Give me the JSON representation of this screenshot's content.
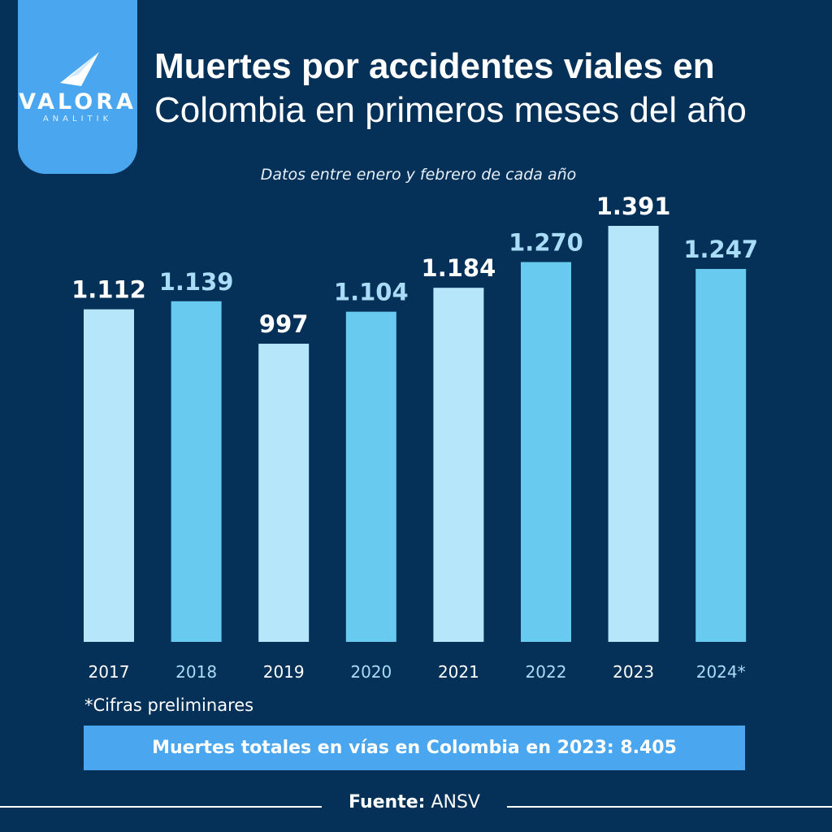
{
  "brand": {
    "name": "VALORA",
    "sub": "ANALITIK"
  },
  "header": {
    "title_line1": "Muertes por accidentes viales en",
    "title_line2": "Colombia en primeros meses del año",
    "subtitle": "Datos entre enero y febrero de cada año"
  },
  "chart_data": {
    "type": "bar",
    "title": "Muertes por accidentes viales en Colombia en primeros meses del año",
    "subtitle": "Datos entre enero y febrero de cada año",
    "categories": [
      "2017",
      "2018",
      "2019",
      "2020",
      "2021",
      "2022",
      "2023",
      "2024*"
    ],
    "values": [
      1112,
      1139,
      997,
      1104,
      1184,
      1270,
      1391,
      1247
    ],
    "value_labels": [
      "1.112",
      "1.139",
      "997",
      "1.104",
      "1.184",
      "1.270",
      "1.391",
      "1.247"
    ],
    "ylim": [
      0,
      1391
    ],
    "grid": false,
    "legend": "none",
    "colors": {
      "light": "#b5e6fa",
      "medium": "#67caee",
      "label_light": "#ffffff",
      "label_medium": "#a9dcf6"
    }
  },
  "footnote": "*Cifras preliminares",
  "total_banner": "Muertes totales en vías en Colombia en 2023: 8.405",
  "source": {
    "label": "Fuente:",
    "value": "ANSV"
  },
  "colors": {
    "background": "#053058",
    "accent": "#4aa6ee"
  }
}
